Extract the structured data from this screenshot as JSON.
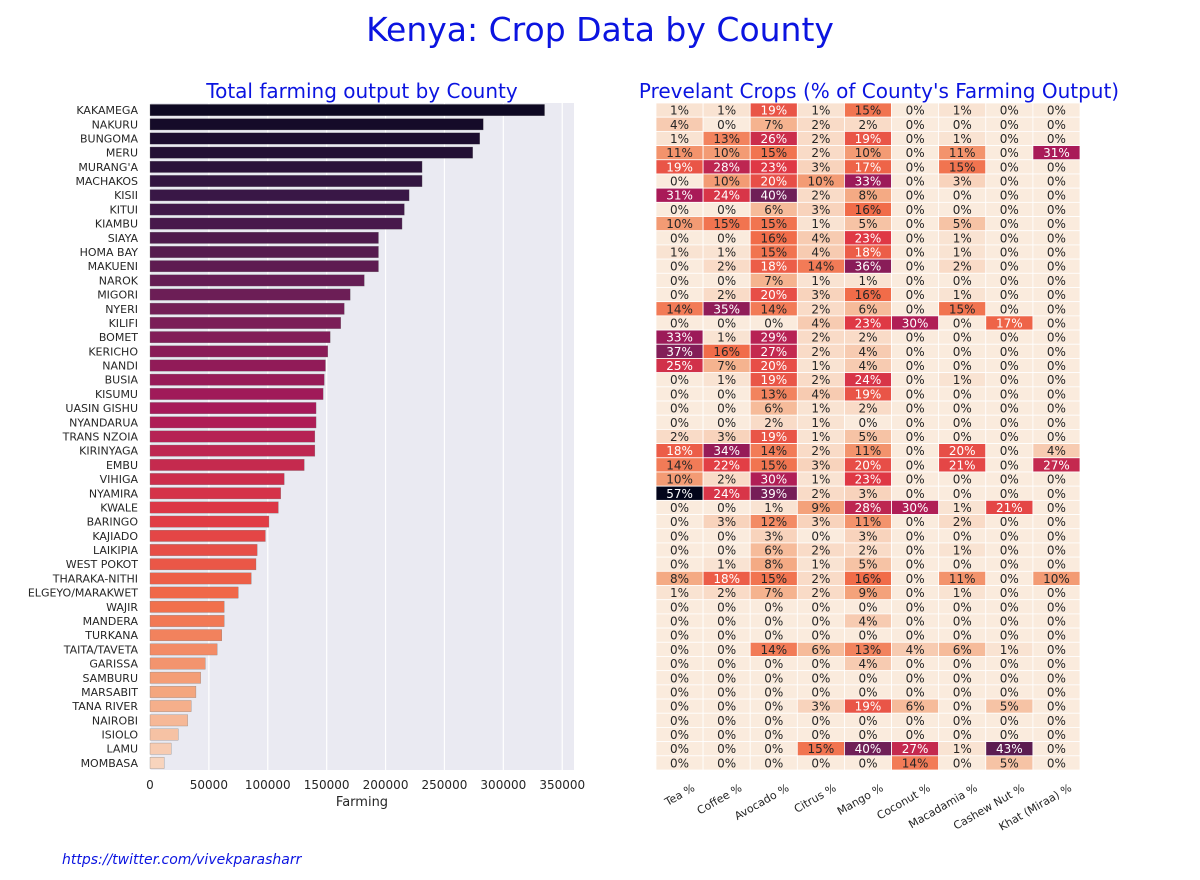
{
  "title": "Kenya: Crop Data by County",
  "credit": "https://twitter.com/vivekparasharr",
  "chart_data": [
    {
      "type": "bar",
      "orientation": "horizontal",
      "title": "Total farming output by County",
      "xlabel": "Farming",
      "ylabel": "",
      "xlim": [
        0,
        360000
      ],
      "xticks": [
        0,
        50000,
        100000,
        150000,
        200000,
        250000,
        300000,
        350000
      ],
      "grid": true,
      "categories": [
        "KAKAMEGA",
        "NAKURU",
        "BUNGOMA",
        "MERU",
        "MURANG'A",
        "MACHAKOS",
        "KISII",
        "KITUI",
        "KIAMBU",
        "SIAYA",
        "HOMA BAY",
        "MAKUENI",
        "NAROK",
        "MIGORI",
        "NYERI",
        "KILIFI",
        "BOMET",
        "KERICHO",
        "NANDI",
        "BUSIA",
        "KISUMU",
        "UASIN GISHU",
        "NYANDARUA",
        "TRANS NZOIA",
        "KIRINYAGA",
        "EMBU",
        "VIHIGA",
        "NYAMIRA",
        "KWALE",
        "BARINGO",
        "KAJIADO",
        "LAIKIPIA",
        "WEST POKOT",
        "THARAKA-NITHI",
        "ELGEYO/MARAKWET",
        "WAJIR",
        "MANDERA",
        "TURKANA",
        "TAITA/TAVETA",
        "GARISSA",
        "SAMBURU",
        "MARSABIT",
        "TANA RIVER",
        "NAIROBI",
        "ISIOLO",
        "LAMU",
        "MOMBASA"
      ],
      "values": [
        335000,
        283000,
        280000,
        274000,
        231000,
        231000,
        220000,
        216000,
        214000,
        194000,
        194000,
        194000,
        182000,
        170000,
        165000,
        162000,
        153000,
        151000,
        149000,
        148000,
        147000,
        141000,
        141000,
        140000,
        140000,
        131000,
        114000,
        111000,
        109000,
        101000,
        98000,
        91000,
        90000,
        86000,
        75000,
        63000,
        63000,
        61000,
        57000,
        47000,
        43000,
        39000,
        35000,
        32000,
        24000,
        18000,
        12000
      ]
    },
    {
      "type": "heatmap",
      "title": "Prevelant Crops (% of County's Farming Output)",
      "columns": [
        "Tea %",
        "Coffee %",
        "Avocado %",
        "Citrus %",
        "Mango %",
        "Coconut %",
        "Macadamia %",
        "Cashew Nut %",
        "Khat (Miraa) %"
      ],
      "rows": [
        [
          1,
          1,
          19,
          1,
          15,
          0,
          1,
          0,
          0
        ],
        [
          4,
          0,
          7,
          2,
          2,
          0,
          0,
          0,
          0
        ],
        [
          1,
          13,
          26,
          2,
          19,
          0,
          1,
          0,
          0
        ],
        [
          11,
          10,
          15,
          2,
          10,
          0,
          11,
          0,
          31
        ],
        [
          19,
          28,
          23,
          3,
          17,
          0,
          15,
          0,
          0
        ],
        [
          0,
          10,
          20,
          10,
          33,
          0,
          3,
          0,
          0
        ],
        [
          31,
          24,
          40,
          2,
          8,
          0,
          0,
          0,
          0
        ],
        [
          0,
          0,
          6,
          3,
          16,
          0,
          0,
          0,
          0
        ],
        [
          10,
          15,
          15,
          1,
          5,
          0,
          5,
          0,
          0
        ],
        [
          0,
          0,
          16,
          4,
          23,
          0,
          1,
          0,
          0
        ],
        [
          1,
          1,
          15,
          4,
          18,
          0,
          1,
          0,
          0
        ],
        [
          0,
          2,
          18,
          14,
          36,
          0,
          2,
          0,
          0
        ],
        [
          0,
          0,
          7,
          1,
          1,
          0,
          0,
          0,
          0
        ],
        [
          0,
          2,
          20,
          3,
          16,
          0,
          1,
          0,
          0
        ],
        [
          14,
          35,
          14,
          2,
          6,
          0,
          15,
          0,
          0
        ],
        [
          0,
          0,
          0,
          4,
          23,
          30,
          0,
          17,
          0
        ],
        [
          33,
          1,
          29,
          2,
          2,
          0,
          0,
          0,
          0
        ],
        [
          37,
          16,
          27,
          2,
          4,
          0,
          0,
          0,
          0
        ],
        [
          25,
          7,
          20,
          1,
          4,
          0,
          0,
          0,
          0
        ],
        [
          0,
          1,
          19,
          2,
          24,
          0,
          1,
          0,
          0
        ],
        [
          0,
          0,
          13,
          4,
          19,
          0,
          0,
          0,
          0
        ],
        [
          0,
          0,
          6,
          1,
          2,
          0,
          0,
          0,
          0
        ],
        [
          0,
          0,
          2,
          1,
          0,
          0,
          0,
          0,
          0
        ],
        [
          2,
          3,
          19,
          1,
          5,
          0,
          0,
          0,
          0
        ],
        [
          18,
          34,
          14,
          2,
          11,
          0,
          20,
          0,
          4
        ],
        [
          14,
          22,
          15,
          3,
          20,
          0,
          21,
          0,
          27
        ],
        [
          10,
          2,
          30,
          1,
          23,
          0,
          0,
          0,
          0
        ],
        [
          57,
          24,
          39,
          2,
          3,
          0,
          0,
          0,
          0
        ],
        [
          0,
          0,
          1,
          9,
          28,
          30,
          1,
          21,
          0
        ],
        [
          0,
          3,
          12,
          3,
          11,
          0,
          2,
          0,
          0
        ],
        [
          0,
          0,
          3,
          0,
          3,
          0,
          0,
          0,
          0
        ],
        [
          0,
          0,
          6,
          2,
          2,
          0,
          1,
          0,
          0
        ],
        [
          0,
          1,
          8,
          1,
          5,
          0,
          0,
          0,
          0
        ],
        [
          8,
          18,
          15,
          2,
          16,
          0,
          11,
          0,
          10
        ],
        [
          1,
          2,
          7,
          2,
          9,
          0,
          1,
          0,
          0
        ],
        [
          0,
          0,
          0,
          0,
          0,
          0,
          0,
          0,
          0
        ],
        [
          0,
          0,
          0,
          0,
          4,
          0,
          0,
          0,
          0
        ],
        [
          0,
          0,
          0,
          0,
          0,
          0,
          0,
          0,
          0
        ],
        [
          0,
          0,
          14,
          6,
          13,
          4,
          6,
          1,
          0
        ],
        [
          0,
          0,
          0,
          0,
          4,
          0,
          0,
          0,
          0
        ],
        [
          0,
          0,
          0,
          0,
          0,
          0,
          0,
          0,
          0
        ],
        [
          0,
          0,
          0,
          0,
          0,
          0,
          0,
          0,
          0
        ],
        [
          0,
          0,
          0,
          3,
          19,
          6,
          0,
          5,
          0
        ],
        [
          0,
          0,
          0,
          0,
          0,
          0,
          0,
          0,
          0
        ],
        [
          0,
          0,
          0,
          0,
          0,
          0,
          0,
          0,
          0
        ],
        [
          0,
          0,
          0,
          15,
          40,
          27,
          1,
          43,
          0
        ],
        [
          0,
          0,
          0,
          0,
          0,
          14,
          0,
          5,
          0
        ]
      ],
      "value_suffix": "%",
      "color_range": [
        0,
        57
      ]
    }
  ]
}
